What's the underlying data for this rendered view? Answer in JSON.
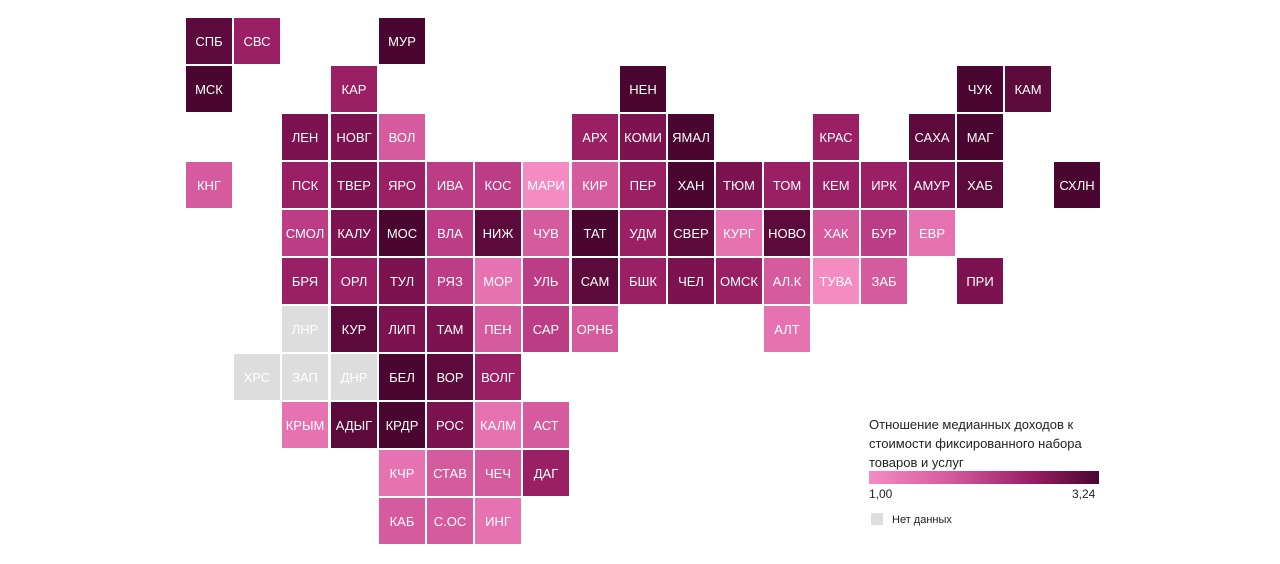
{
  "colors": {
    "c1": "#f48bc3",
    "c2": "#e772b2",
    "c3": "#d65a9e",
    "c4": "#bc3d85",
    "c5": "#9b1f64",
    "c6": "#7c1250",
    "c7": "#5c0a3b",
    "c8": "#4a0630",
    "nodata": "#dddddd"
  },
  "regions": [
    {
      "label": "СПБ",
      "row": 0,
      "col": 0,
      "shade": "c7"
    },
    {
      "label": "СВС",
      "row": 0,
      "col": 1,
      "shade": "c5"
    },
    {
      "label": "МУР",
      "row": 0,
      "col": 4,
      "shade": "c8"
    },
    {
      "label": "МСК",
      "row": 1,
      "col": 0,
      "shade": "c8"
    },
    {
      "label": "КАР",
      "row": 1,
      "col": 3,
      "shade": "c5"
    },
    {
      "label": "НЕН",
      "row": 1,
      "col": 9,
      "shade": "c8"
    },
    {
      "label": "ЧУК",
      "row": 1,
      "col": 16,
      "shade": "c8"
    },
    {
      "label": "КАМ",
      "row": 1,
      "col": 17,
      "shade": "c7"
    },
    {
      "label": "ЛЕН",
      "row": 2,
      "col": 2,
      "shade": "c6"
    },
    {
      "label": "НОВГ",
      "row": 2,
      "col": 3,
      "shade": "c6"
    },
    {
      "label": "ВОЛ",
      "row": 2,
      "col": 4,
      "shade": "c3"
    },
    {
      "label": "АРХ",
      "row": 2,
      "col": 8,
      "shade": "c5"
    },
    {
      "label": "КОМИ",
      "row": 2,
      "col": 9,
      "shade": "c6"
    },
    {
      "label": "ЯМАЛ",
      "row": 2,
      "col": 10,
      "shade": "c8"
    },
    {
      "label": "КРАС",
      "row": 2,
      "col": 13,
      "shade": "c5"
    },
    {
      "label": "САХА",
      "row": 2,
      "col": 15,
      "shade": "c7"
    },
    {
      "label": "МАГ",
      "row": 2,
      "col": 16,
      "shade": "c8"
    },
    {
      "label": "КНГ",
      "row": 3,
      "col": 0,
      "shade": "c3"
    },
    {
      "label": "ПСК",
      "row": 3,
      "col": 2,
      "shade": "c5"
    },
    {
      "label": "ТВЕР",
      "row": 3,
      "col": 3,
      "shade": "c6"
    },
    {
      "label": "ЯРО",
      "row": 3,
      "col": 4,
      "shade": "c5"
    },
    {
      "label": "ИВА",
      "row": 3,
      "col": 5,
      "shade": "c4"
    },
    {
      "label": "КОС",
      "row": 3,
      "col": 6,
      "shade": "c4"
    },
    {
      "label": "МАРИ",
      "row": 3,
      "col": 7,
      "shade": "c1"
    },
    {
      "label": "КИР",
      "row": 3,
      "col": 8,
      "shade": "c3"
    },
    {
      "label": "ПЕР",
      "row": 3,
      "col": 9,
      "shade": "c5"
    },
    {
      "label": "ХАН",
      "row": 3,
      "col": 10,
      "shade": "c8"
    },
    {
      "label": "ТЮМ",
      "row": 3,
      "col": 11,
      "shade": "c6"
    },
    {
      "label": "ТОМ",
      "row": 3,
      "col": 12,
      "shade": "c5"
    },
    {
      "label": "КЕМ",
      "row": 3,
      "col": 13,
      "shade": "c5"
    },
    {
      "label": "ИРК",
      "row": 3,
      "col": 14,
      "shade": "c5"
    },
    {
      "label": "АМУР",
      "row": 3,
      "col": 15,
      "shade": "c6"
    },
    {
      "label": "ХАБ",
      "row": 3,
      "col": 16,
      "shade": "c7"
    },
    {
      "label": "СХЛН",
      "row": 3,
      "col": 18,
      "shade": "c8"
    },
    {
      "label": "СМОЛ",
      "row": 4,
      "col": 2,
      "shade": "c4"
    },
    {
      "label": "КАЛУ",
      "row": 4,
      "col": 3,
      "shade": "c6"
    },
    {
      "label": "МОС",
      "row": 4,
      "col": 4,
      "shade": "c8"
    },
    {
      "label": "ВЛА",
      "row": 4,
      "col": 5,
      "shade": "c4"
    },
    {
      "label": "НИЖ",
      "row": 4,
      "col": 6,
      "shade": "c7"
    },
    {
      "label": "ЧУВ",
      "row": 4,
      "col": 7,
      "shade": "c3"
    },
    {
      "label": "ТАТ",
      "row": 4,
      "col": 8,
      "shade": "c8"
    },
    {
      "label": "УДМ",
      "row": 4,
      "col": 9,
      "shade": "c5"
    },
    {
      "label": "СВЕР",
      "row": 4,
      "col": 10,
      "shade": "c7"
    },
    {
      "label": "КУРГ",
      "row": 4,
      "col": 11,
      "shade": "c2"
    },
    {
      "label": "НОВО",
      "row": 4,
      "col": 12,
      "shade": "c7"
    },
    {
      "label": "ХАК",
      "row": 4,
      "col": 13,
      "shade": "c3"
    },
    {
      "label": "БУР",
      "row": 4,
      "col": 14,
      "shade": "c4"
    },
    {
      "label": "ЕВР",
      "row": 4,
      "col": 15,
      "shade": "c2"
    },
    {
      "label": "БРЯ",
      "row": 5,
      "col": 2,
      "shade": "c5"
    },
    {
      "label": "ОРЛ",
      "row": 5,
      "col": 3,
      "shade": "c5"
    },
    {
      "label": "ТУЛ",
      "row": 5,
      "col": 4,
      "shade": "c6"
    },
    {
      "label": "РЯЗ",
      "row": 5,
      "col": 5,
      "shade": "c4"
    },
    {
      "label": "МОР",
      "row": 5,
      "col": 6,
      "shade": "c2"
    },
    {
      "label": "УЛЬ",
      "row": 5,
      "col": 7,
      "shade": "c4"
    },
    {
      "label": "САМ",
      "row": 5,
      "col": 8,
      "shade": "c7"
    },
    {
      "label": "БШК",
      "row": 5,
      "col": 9,
      "shade": "c5"
    },
    {
      "label": "ЧЕЛ",
      "row": 5,
      "col": 10,
      "shade": "c6"
    },
    {
      "label": "ОМСК",
      "row": 5,
      "col": 11,
      "shade": "c5"
    },
    {
      "label": "АЛ.К",
      "row": 5,
      "col": 12,
      "shade": "c3"
    },
    {
      "label": "ТУВА",
      "row": 5,
      "col": 13,
      "shade": "c1"
    },
    {
      "label": "ЗАБ",
      "row": 5,
      "col": 14,
      "shade": "c3"
    },
    {
      "label": "ПРИ",
      "row": 5,
      "col": 16,
      "shade": "c6"
    },
    {
      "label": "ЛНР",
      "row": 6,
      "col": 2,
      "shade": "nodata"
    },
    {
      "label": "КУР",
      "row": 6,
      "col": 3,
      "shade": "c7"
    },
    {
      "label": "ЛИП",
      "row": 6,
      "col": 4,
      "shade": "c6"
    },
    {
      "label": "ТАМ",
      "row": 6,
      "col": 5,
      "shade": "c6"
    },
    {
      "label": "ПЕН",
      "row": 6,
      "col": 6,
      "shade": "c3"
    },
    {
      "label": "САР",
      "row": 6,
      "col": 7,
      "shade": "c4"
    },
    {
      "label": "ОРНБ",
      "row": 6,
      "col": 8,
      "shade": "c3"
    },
    {
      "label": "АЛТ",
      "row": 6,
      "col": 12,
      "shade": "c2"
    },
    {
      "label": "ХРС",
      "row": 7,
      "col": 1,
      "shade": "nodata"
    },
    {
      "label": "ЗАП",
      "row": 7,
      "col": 2,
      "shade": "nodata"
    },
    {
      "label": "ДНР",
      "row": 7,
      "col": 3,
      "shade": "nodata"
    },
    {
      "label": "БЕЛ",
      "row": 7,
      "col": 4,
      "shade": "c8"
    },
    {
      "label": "ВОР",
      "row": 7,
      "col": 5,
      "shade": "c7"
    },
    {
      "label": "ВОЛГ",
      "row": 7,
      "col": 6,
      "shade": "c5"
    },
    {
      "label": "КРЫМ",
      "row": 8,
      "col": 2,
      "shade": "c2"
    },
    {
      "label": "АДЫГ",
      "row": 8,
      "col": 3,
      "shade": "c7"
    },
    {
      "label": "КРДР",
      "row": 8,
      "col": 4,
      "shade": "c8"
    },
    {
      "label": "РОС",
      "row": 8,
      "col": 5,
      "shade": "c6"
    },
    {
      "label": "КАЛМ",
      "row": 8,
      "col": 6,
      "shade": "c2"
    },
    {
      "label": "АСТ",
      "row": 8,
      "col": 7,
      "shade": "c3"
    },
    {
      "label": "КЧР",
      "row": 9,
      "col": 4,
      "shade": "c2"
    },
    {
      "label": "СТАВ",
      "row": 9,
      "col": 5,
      "shade": "c3"
    },
    {
      "label": "ЧЕЧ",
      "row": 9,
      "col": 6,
      "shade": "c3"
    },
    {
      "label": "ДАГ",
      "row": 9,
      "col": 7,
      "shade": "c5"
    },
    {
      "label": "КАБ",
      "row": 10,
      "col": 4,
      "shade": "c3"
    },
    {
      "label": "С.ОС",
      "row": 10,
      "col": 5,
      "shade": "c3"
    },
    {
      "label": "ИНГ",
      "row": 10,
      "col": 6,
      "shade": "c2"
    }
  ],
  "legend": {
    "title": "Отношение медианных доходов к стоимости фиксированного набора товаров и услуг",
    "min_label": "1,00",
    "max_label": "3,24",
    "nodata_label": "Нет данных"
  }
}
